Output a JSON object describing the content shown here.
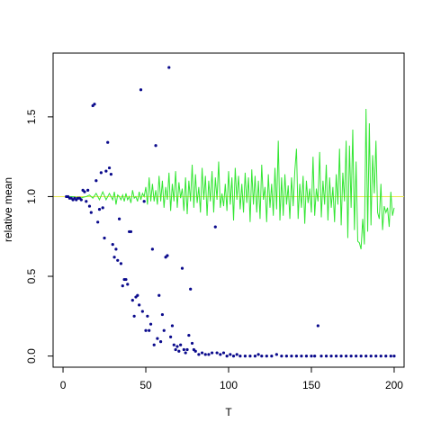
{
  "chart_data": {
    "type": "scatter",
    "title": "",
    "xlabel": "T",
    "ylabel": "relative mean",
    "xlim": [
      -6,
      206
    ],
    "ylim": [
      -0.07,
      1.9
    ],
    "x_ticks": [
      0,
      50,
      100,
      150,
      200
    ],
    "x_tick_labels": [
      "0",
      "50",
      "100",
      "150",
      "200"
    ],
    "y_ticks": [
      0.0,
      0.5,
      1.0,
      1.5
    ],
    "y_tick_labels": [
      "0.0",
      "0.5",
      "1.0",
      "1.5"
    ],
    "grid": false,
    "reference_line": {
      "y": 1.0,
      "color": "#e8e84a"
    },
    "colors": {
      "points": "#0a0a8c",
      "line": "#33e633"
    },
    "series": [
      {
        "kind": "points",
        "points": [
          [
            2,
            1.0
          ],
          [
            3,
            1.0
          ],
          [
            4,
            0.99
          ],
          [
            5,
            0.99
          ],
          [
            6,
            0.98
          ],
          [
            7,
            0.99
          ],
          [
            8,
            0.98
          ],
          [
            9,
            0.99
          ],
          [
            10,
            0.99
          ],
          [
            11,
            0.98
          ],
          [
            12,
            1.04
          ],
          [
            13,
            1.03
          ],
          [
            14,
            0.97
          ],
          [
            15,
            1.04
          ],
          [
            16,
            0.94
          ],
          [
            17,
            0.9
          ],
          [
            18,
            1.57
          ],
          [
            19,
            1.58
          ],
          [
            20,
            1.1
          ],
          [
            21,
            0.84
          ],
          [
            22,
            0.92
          ],
          [
            23,
            1.15
          ],
          [
            24,
            0.93
          ],
          [
            25,
            0.74
          ],
          [
            26,
            1.16
          ],
          [
            27,
            1.34
          ],
          [
            28,
            1.18
          ],
          [
            29,
            1.14
          ],
          [
            30,
            0.7
          ],
          [
            31,
            0.62
          ],
          [
            32,
            0.67
          ],
          [
            33,
            0.6
          ],
          [
            34,
            0.86
          ],
          [
            35,
            0.58
          ],
          [
            36,
            0.44
          ],
          [
            37,
            0.48
          ],
          [
            38,
            0.48
          ],
          [
            39,
            0.45
          ],
          [
            40,
            0.78
          ],
          [
            41,
            0.78
          ],
          [
            42,
            0.35
          ],
          [
            43,
            0.25
          ],
          [
            44,
            0.37
          ],
          [
            45,
            0.38
          ],
          [
            46,
            0.32
          ],
          [
            47,
            1.67
          ],
          [
            48,
            0.28
          ],
          [
            49,
            0.97
          ],
          [
            50,
            0.16
          ],
          [
            51,
            0.25
          ],
          [
            52,
            0.16
          ],
          [
            53,
            0.2
          ],
          [
            54,
            0.67
          ],
          [
            55,
            0.07
          ],
          [
            56,
            1.32
          ],
          [
            57,
            0.11
          ],
          [
            58,
            0.38
          ],
          [
            59,
            0.09
          ],
          [
            60,
            0.26
          ],
          [
            61,
            0.16
          ],
          [
            62,
            0.62
          ],
          [
            63,
            0.63
          ],
          [
            64,
            1.81
          ],
          [
            65,
            0.12
          ],
          [
            66,
            0.19
          ],
          [
            67,
            0.07
          ],
          [
            68,
            0.04
          ],
          [
            69,
            0.06
          ],
          [
            70,
            0.03
          ],
          [
            71,
            0.07
          ],
          [
            72,
            0.55
          ],
          [
            73,
            0.04
          ],
          [
            74,
            0.02
          ],
          [
            75,
            0.04
          ],
          [
            76,
            0.13
          ],
          [
            77,
            0.42
          ],
          [
            78,
            0.08
          ],
          [
            79,
            0.04
          ],
          [
            80,
            0.03
          ],
          [
            82,
            0.01
          ],
          [
            84,
            0.02
          ],
          [
            86,
            0.01
          ],
          [
            88,
            0.01
          ],
          [
            90,
            0.02
          ],
          [
            92,
            0.81
          ],
          [
            93,
            0.02
          ],
          [
            95,
            0.01
          ],
          [
            97,
            0.02
          ],
          [
            99,
            0.0
          ],
          [
            101,
            0.01
          ],
          [
            103,
            0.0
          ],
          [
            105,
            0.01
          ],
          [
            107,
            0.0
          ],
          [
            110,
            0.0
          ],
          [
            113,
            0.0
          ],
          [
            116,
            0.0
          ],
          [
            118,
            0.01
          ],
          [
            120,
            0.0
          ],
          [
            123,
            0.0
          ],
          [
            126,
            0.0
          ],
          [
            129,
            0.01
          ],
          [
            132,
            0.0
          ],
          [
            135,
            0.0
          ],
          [
            138,
            0.0
          ],
          [
            141,
            0.0
          ],
          [
            144,
            0.0
          ],
          [
            147,
            0.0
          ],
          [
            150,
            0.0
          ],
          [
            152,
            0.0
          ],
          [
            154,
            0.19
          ],
          [
            156,
            0.0
          ],
          [
            159,
            0.0
          ],
          [
            162,
            0.0
          ],
          [
            165,
            0.0
          ],
          [
            168,
            0.0
          ],
          [
            171,
            0.0
          ],
          [
            174,
            0.0
          ],
          [
            177,
            0.0
          ],
          [
            180,
            0.0
          ],
          [
            183,
            0.0
          ],
          [
            186,
            0.0
          ],
          [
            189,
            0.0
          ],
          [
            192,
            0.0
          ],
          [
            195,
            0.0
          ],
          [
            198,
            0.0
          ],
          [
            200,
            0.0
          ]
        ]
      },
      {
        "kind": "line",
        "points": [
          [
            2,
            1.0
          ],
          [
            6,
            1.0
          ],
          [
            10,
            0.99
          ],
          [
            14,
            1.0
          ],
          [
            16,
            1.01
          ],
          [
            18,
            0.99
          ],
          [
            20,
            1.02
          ],
          [
            22,
            0.98
          ],
          [
            24,
            1.03
          ],
          [
            26,
            0.98
          ],
          [
            28,
            1.02
          ],
          [
            30,
            0.98
          ],
          [
            31,
            1.03
          ],
          [
            32,
            0.95
          ],
          [
            33,
            1.01
          ],
          [
            34,
            1.0
          ],
          [
            35,
            0.98
          ],
          [
            36,
            1.01
          ],
          [
            37,
            0.97
          ],
          [
            38,
            1.02
          ],
          [
            39,
            0.98
          ],
          [
            40,
            1.0
          ],
          [
            41,
            0.96
          ],
          [
            42,
            1.04
          ],
          [
            43,
            0.99
          ],
          [
            44,
            1.0
          ],
          [
            45,
            0.97
          ],
          [
            46,
            1.03
          ],
          [
            47,
            0.98
          ],
          [
            48,
            1.02
          ],
          [
            49,
            1.0
          ],
          [
            50,
            1.06
          ],
          [
            51,
            0.95
          ],
          [
            52,
            1.12
          ],
          [
            53,
            0.97
          ],
          [
            54,
            1.08
          ],
          [
            55,
            0.97
          ],
          [
            56,
            1.04
          ],
          [
            57,
            0.95
          ],
          [
            58,
            1.13
          ],
          [
            59,
            0.97
          ],
          [
            60,
            1.1
          ],
          [
            61,
            0.93
          ],
          [
            62,
            1.06
          ],
          [
            63,
            0.98
          ],
          [
            64,
            1.15
          ],
          [
            65,
            0.91
          ],
          [
            66,
            1.08
          ],
          [
            67,
            0.97
          ],
          [
            68,
            1.16
          ],
          [
            69,
            0.93
          ],
          [
            70,
            1.09
          ],
          [
            71,
            0.99
          ],
          [
            72,
            1.05
          ],
          [
            73,
            0.91
          ],
          [
            74,
            1.12
          ],
          [
            75,
            0.89
          ],
          [
            76,
            1.1
          ],
          [
            77,
            0.97
          ],
          [
            78,
            1.2
          ],
          [
            79,
            0.93
          ],
          [
            80,
            1.14
          ],
          [
            81,
            0.96
          ],
          [
            82,
            1.06
          ],
          [
            83,
            0.9
          ],
          [
            84,
            1.18
          ],
          [
            85,
            0.98
          ],
          [
            86,
            1.13
          ],
          [
            87,
            0.88
          ],
          [
            88,
            1.1
          ],
          [
            89,
            0.97
          ],
          [
            90,
            1.16
          ],
          [
            91,
            0.9
          ],
          [
            92,
            1.12
          ],
          [
            93,
            0.98
          ],
          [
            94,
            1.22
          ],
          [
            95,
            0.93
          ],
          [
            96,
            1.02
          ],
          [
            97,
            0.94
          ],
          [
            98,
            1.08
          ],
          [
            99,
            0.91
          ],
          [
            100,
            1.16
          ],
          [
            101,
            0.95
          ],
          [
            102,
            1.12
          ],
          [
            103,
            0.85
          ],
          [
            104,
            1.18
          ],
          [
            105,
            0.98
          ],
          [
            106,
            1.13
          ],
          [
            107,
            0.92
          ],
          [
            108,
            1.08
          ],
          [
            109,
            0.9
          ],
          [
            110,
            1.15
          ],
          [
            111,
            0.96
          ],
          [
            112,
            1.12
          ],
          [
            113,
            0.84
          ],
          [
            114,
            1.17
          ],
          [
            115,
            0.95
          ],
          [
            116,
            1.13
          ],
          [
            117,
            0.9
          ],
          [
            118,
            1.1
          ],
          [
            119,
            0.86
          ],
          [
            120,
            1.2
          ],
          [
            121,
            0.98
          ],
          [
            122,
            1.06
          ],
          [
            123,
            0.84
          ],
          [
            124,
            1.14
          ],
          [
            125,
            0.93
          ],
          [
            126,
            1.08
          ],
          [
            127,
            0.88
          ],
          [
            128,
            1.18
          ],
          [
            129,
            0.92
          ],
          [
            130,
            1.35
          ],
          [
            131,
            0.85
          ],
          [
            132,
            1.12
          ],
          [
            133,
            0.88
          ],
          [
            134,
            1.14
          ],
          [
            135,
            0.95
          ],
          [
            136,
            1.07
          ],
          [
            137,
            0.86
          ],
          [
            138,
            1.12
          ],
          [
            139,
            0.94
          ],
          [
            140,
            1.16
          ],
          [
            141,
            1.3
          ],
          [
            142,
            0.86
          ],
          [
            143,
            1.08
          ],
          [
            144,
            0.93
          ],
          [
            145,
            1.13
          ],
          [
            146,
            0.83
          ],
          [
            147,
            1.1
          ],
          [
            148,
            0.96
          ],
          [
            149,
            1.05
          ],
          [
            150,
            0.9
          ],
          [
            151,
            1.25
          ],
          [
            152,
            0.88
          ],
          [
            153,
            1.05
          ],
          [
            154,
            0.97
          ],
          [
            155,
            1.28
          ],
          [
            156,
            0.87
          ],
          [
            157,
            1.1
          ],
          [
            158,
            0.95
          ],
          [
            159,
            1.2
          ],
          [
            160,
            0.85
          ],
          [
            161,
            1.12
          ],
          [
            162,
            0.93
          ],
          [
            163,
            1.06
          ],
          [
            164,
            0.84
          ],
          [
            165,
            1.14
          ],
          [
            166,
            0.95
          ],
          [
            167,
            1.3
          ],
          [
            168,
            0.82
          ],
          [
            169,
            1.15
          ],
          [
            170,
            0.97
          ],
          [
            171,
            1.35
          ],
          [
            172,
            0.74
          ],
          [
            173,
            1.32
          ],
          [
            174,
            0.93
          ],
          [
            175,
            1.42
          ],
          [
            176,
            0.79
          ],
          [
            177,
            1.22
          ],
          [
            178,
            0.72
          ],
          [
            179,
            0.71
          ],
          [
            180,
            0.67
          ],
          [
            181,
            0.86
          ],
          [
            182,
            0.7
          ],
          [
            183,
            1.55
          ],
          [
            184,
            0.78
          ],
          [
            185,
            1.46
          ],
          [
            186,
            0.82
          ],
          [
            187,
            1.26
          ],
          [
            188,
            1.02
          ],
          [
            189,
            1.35
          ],
          [
            190,
            0.9
          ],
          [
            191,
            0.86
          ],
          [
            192,
            1.08
          ],
          [
            193,
            0.79
          ],
          [
            194,
            0.94
          ],
          [
            195,
            0.9
          ],
          [
            196,
            0.93
          ],
          [
            197,
            0.81
          ],
          [
            198,
            1.03
          ],
          [
            199,
            0.88
          ],
          [
            200,
            0.93
          ]
        ]
      }
    ]
  }
}
